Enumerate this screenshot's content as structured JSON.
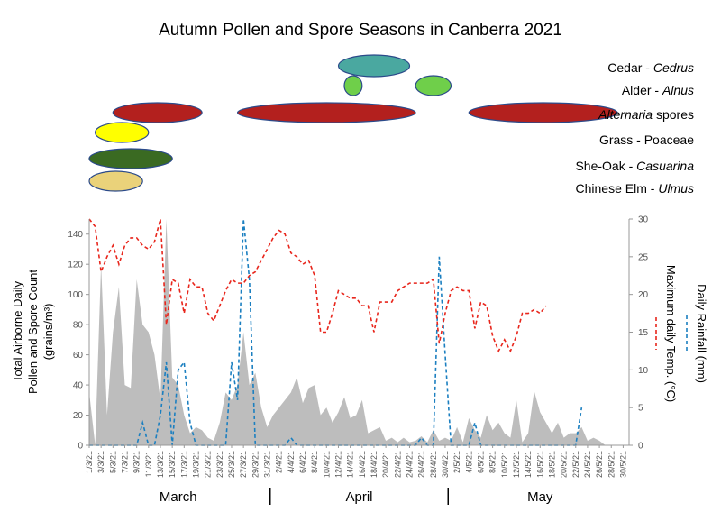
{
  "chart_data": {
    "type": "area",
    "title": "Autumn Pollen and Spore Seasons in Canberra 2021",
    "legend": [
      {
        "name": "Cedar - ",
        "taxon": "Cedrus",
        "color": "#4aa8a0",
        "stroke": "#2b4a8a"
      },
      {
        "name": "Alder - ",
        "taxon": "Alnus",
        "color": "#6fcf4a",
        "stroke": "#2b4a8a"
      },
      {
        "name": "",
        "taxon": "Alternaria",
        "suffix": " spores",
        "color": "#b3201e",
        "stroke": "#2b4a8a"
      },
      {
        "name": "Grass - Poaceae",
        "taxon": "",
        "color": "#ffff00",
        "stroke": "#2b4a8a"
      },
      {
        "name": "She-Oak - ",
        "taxon": "Casuarina",
        "color": "#3a6a22",
        "stroke": "#2b4a8a"
      },
      {
        "name": "Chinese Elm - ",
        "taxon": "Ulmus",
        "color": "#ead27a",
        "stroke": "#2b4a8a"
      }
    ],
    "seasons": [
      {
        "taxon": "Cedrus",
        "from": "12/4/21",
        "to": "24/4/21"
      },
      {
        "taxon": "Alnus",
        "from": "13/4/21",
        "to": "16/4/21"
      },
      {
        "taxon": "Alnus",
        "from": "25/4/21",
        "to": "1/5/21"
      },
      {
        "taxon": "Alternaria",
        "from": "5/3/21",
        "to": "20/3/21"
      },
      {
        "taxon": "Alternaria",
        "from": "26/3/21",
        "to": "25/4/21"
      },
      {
        "taxon": "Alternaria",
        "from": "4/5/21",
        "to": "29/5/21"
      },
      {
        "taxon": "Poaceae",
        "from": "2/3/21",
        "to": "11/3/21"
      },
      {
        "taxon": "Casuarina",
        "from": "1/3/21",
        "to": "15/3/21"
      },
      {
        "taxon": "Ulmus",
        "from": "1/3/21",
        "to": "10/3/21"
      }
    ],
    "ylabel_left": [
      "Total Airborne Daily",
      "Pollen and Spore Count",
      "(grains/m³)"
    ],
    "ylabel_right_temp": "Maximum daily Temp. (°C)",
    "ylabel_right_rain": "Daily Rainfall (mm)",
    "ylim_left": [
      0,
      150
    ],
    "yticks_left": [
      0,
      20,
      40,
      60,
      80,
      100,
      120,
      140
    ],
    "ylim_right": [
      0,
      30
    ],
    "yticks_right": [
      0,
      5,
      10,
      15,
      20,
      25,
      30
    ],
    "x_tick_labels": [
      "1/3/21",
      "3/3/21",
      "5/3/21",
      "7/3/21",
      "9/3/21",
      "11/3/21",
      "13/3/21",
      "15/3/21",
      "17/3/21",
      "19/3/21",
      "21/3/21",
      "23/3/21",
      "25/3/21",
      "27/3/21",
      "29/3/21",
      "31/3/21",
      "2/4/21",
      "4/4/21",
      "6/4/21",
      "8/4/21",
      "10/4/21",
      "12/4/21",
      "14/4/21",
      "16/4/21",
      "18/4/21",
      "20/4/21",
      "22/4/21",
      "24/4/21",
      "26/4/21",
      "28/4/21",
      "30/4/21",
      "2/5/21",
      "4/5/21",
      "6/5/21",
      "8/5/21",
      "10/5/21",
      "12/5/21",
      "14/5/21",
      "16/5/21",
      "18/5/21",
      "20/5/21",
      "22/5/21",
      "24/5/21",
      "26/5/21",
      "28/5/21",
      "30/5/21"
    ],
    "months": [
      "March",
      "April",
      "May"
    ],
    "grid": false,
    "series": [
      {
        "name": "Total Airborne Daily Pollen and Spore Count",
        "kind": "area",
        "axis": "left",
        "color": "#bdbdbd",
        "values": [
          35,
          0,
          120,
          20,
          75,
          105,
          40,
          38,
          110,
          80,
          75,
          60,
          30,
          150,
          45,
          40,
          20,
          8,
          12,
          10,
          5,
          3,
          15,
          35,
          30,
          40,
          75,
          40,
          48,
          25,
          12,
          20,
          25,
          30,
          35,
          45,
          28,
          38,
          40,
          20,
          25,
          15,
          22,
          32,
          18,
          20,
          30,
          8,
          10,
          12,
          3,
          5,
          2,
          5,
          2,
          3,
          6,
          2,
          10,
          3,
          5,
          3,
          12,
          2,
          18,
          10,
          5,
          20,
          10,
          15,
          8,
          5,
          30,
          2,
          8,
          36,
          22,
          15,
          8,
          15,
          5,
          8,
          8,
          12,
          3,
          5,
          3,
          0,
          0,
          0,
          0,
          0
        ]
      },
      {
        "name": "Maximum daily Temp.",
        "kind": "line",
        "axis": "right",
        "color": "#e8261c",
        "dash": true,
        "values": [
          30,
          29,
          23,
          25,
          26.5,
          24,
          26.5,
          27.5,
          27.5,
          26.5,
          26,
          27,
          30,
          16,
          22,
          21.5,
          17.5,
          22,
          21,
          21,
          17.5,
          16.5,
          18.5,
          20.5,
          22,
          21.5,
          21.5,
          22.5,
          23,
          24.5,
          26,
          27.5,
          28.5,
          28,
          25.5,
          25,
          24,
          24.5,
          22.5,
          15,
          15,
          17.5,
          20.5,
          20,
          19.5,
          19.5,
          18.5,
          18.5,
          15,
          19,
          19,
          19,
          20.5,
          21,
          21.5,
          21.5,
          21.5,
          21.5,
          22,
          13.5,
          17.5,
          20.5,
          21,
          20.5,
          20.5,
          15.5,
          19,
          18.5,
          14.5,
          12.5,
          14,
          12.5,
          14.5,
          17.5,
          17.5,
          18,
          17.5,
          18.5,
          null,
          null,
          null,
          null,
          null,
          null,
          null,
          null,
          null,
          null,
          null,
          null,
          null,
          null
        ]
      },
      {
        "name": "Daily Rainfall",
        "kind": "line",
        "axis": "right",
        "color": "#1b7fc0",
        "dash": true,
        "values": [
          0,
          0,
          0,
          0,
          0,
          0,
          0,
          0,
          0,
          3,
          0,
          0,
          4,
          11,
          0,
          10,
          11,
          3,
          0,
          0,
          0,
          0,
          0,
          0,
          11,
          6,
          30,
          22,
          0,
          0,
          0,
          0,
          0,
          0,
          1,
          0,
          0,
          0,
          0,
          0,
          0,
          0,
          0,
          0,
          0,
          0,
          0,
          0,
          0,
          0,
          0,
          0,
          0,
          0,
          0,
          0,
          1,
          0,
          0,
          25,
          12,
          0,
          0,
          0,
          0,
          3,
          0,
          0,
          0,
          0,
          0,
          0,
          0,
          0,
          0,
          0,
          0,
          0,
          0,
          0,
          0,
          0,
          0,
          5
        ]
      }
    ]
  }
}
